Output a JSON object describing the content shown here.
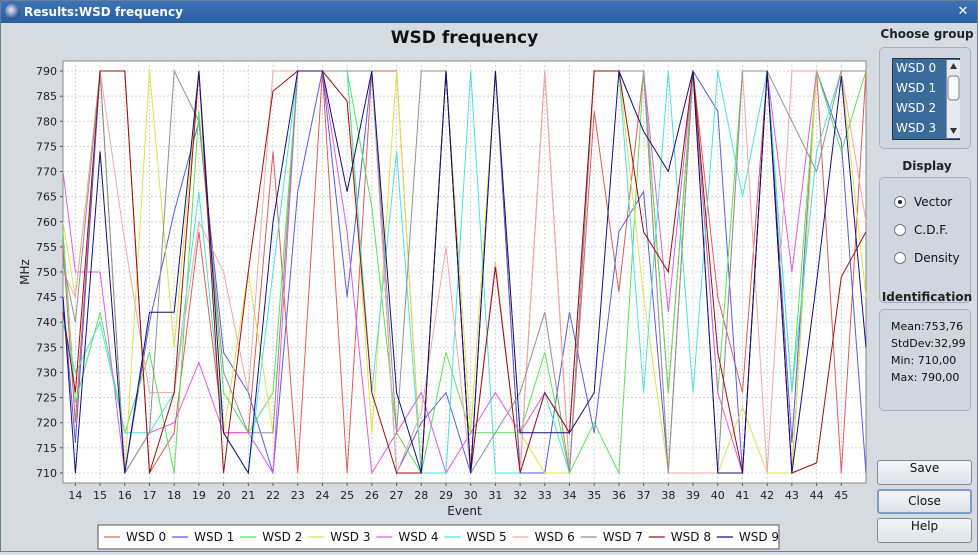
{
  "window": {
    "title": "Results:WSD frequency",
    "close_glyph": "✕"
  },
  "side": {
    "choose_group_title": "Choose group",
    "groups": [
      "WSD 0",
      "WSD 1",
      "WSD 2",
      "WSD 3"
    ],
    "display_title": "Display",
    "display_options": [
      "Vector",
      "C.D.F.",
      "Density"
    ],
    "display_selected": "Vector",
    "identification_title": "Identification",
    "stats": [
      "Mean:753,76",
      "StdDev:32,99",
      "Min: 710,00",
      "Max: 790,00"
    ],
    "buttons": {
      "save": "Save",
      "close": "Close",
      "help": "Help"
    }
  },
  "chart_data": {
    "type": "line",
    "title": "WSD frequency",
    "xlabel": "Event",
    "ylabel": "MHz",
    "xlim": [
      13.5,
      46
    ],
    "ylim": [
      708,
      792
    ],
    "grid": true,
    "legend_position": "bottom",
    "x_ticks": [
      14,
      15,
      16,
      17,
      18,
      19,
      20,
      21,
      22,
      23,
      24,
      25,
      26,
      27,
      28,
      29,
      30,
      31,
      32,
      33,
      34,
      35,
      36,
      37,
      38,
      39,
      40,
      41,
      42,
      43,
      44,
      45
    ],
    "y_ticks": [
      710,
      715,
      720,
      725,
      730,
      735,
      740,
      745,
      750,
      755,
      760,
      765,
      770,
      775,
      780,
      785,
      790
    ],
    "x": [
      13.5,
      14,
      15,
      16,
      17,
      18,
      19,
      20,
      21,
      22,
      23,
      24,
      25,
      26,
      27,
      28,
      29,
      30,
      31,
      32,
      33,
      34,
      35,
      36,
      37,
      38,
      39,
      40,
      41,
      42,
      43,
      44,
      45,
      46
    ],
    "series": [
      {
        "name": "WSD 0",
        "color": "#e05a5a",
        "values": [
          755,
          720,
          790,
          790,
          710,
          718,
          758,
          718,
          718,
          774,
          710,
          790,
          710,
          790,
          790,
          710,
          790,
          710,
          790,
          710,
          790,
          710,
          782,
          746,
          790,
          726,
          790,
          745,
          726,
          790,
          710,
          790,
          710,
          790
        ]
      },
      {
        "name": "WSD 1",
        "color": "#5a5ae0",
        "values": [
          745,
          716,
          790,
          710,
          740,
          762,
          780,
          734,
          726,
          710,
          766,
          790,
          745,
          790,
          710,
          720,
          726,
          710,
          790,
          710,
          710,
          742,
          718,
          758,
          766,
          710,
          790,
          782,
          710,
          790,
          716,
          790,
          776,
          710
        ]
      },
      {
        "name": "WSD 2",
        "color": "#5ae05a",
        "values": [
          758,
          724,
          742,
          718,
          734,
          710,
          782,
          726,
          718,
          726,
          790,
          790,
          790,
          763,
          718,
          710,
          734,
          718,
          718,
          718,
          734,
          710,
          720,
          710,
          790,
          726,
          790,
          726,
          790,
          790,
          726,
          790,
          774,
          790
        ]
      },
      {
        "name": "WSD 3",
        "color": "#e0e04a",
        "values": [
          760,
          745,
          790,
          710,
          790,
          735,
          790,
          718,
          750,
          718,
          790,
          790,
          790,
          718,
          790,
          710,
          790,
          718,
          790,
          718,
          710,
          710,
          790,
          790,
          745,
          710,
          790,
          710,
          723,
          710,
          710,
          790,
          790,
          745
        ]
      },
      {
        "name": "WSD 4",
        "color": "#e05ae0",
        "values": [
          770,
          750,
          750,
          710,
          718,
          720,
          732,
          718,
          718,
          710,
          790,
          790,
          758,
          710,
          718,
          726,
          710,
          718,
          726,
          718,
          726,
          718,
          790,
          790,
          790,
          742,
          790,
          726,
          710,
          790,
          750,
          790,
          790,
          790
        ]
      },
      {
        "name": "WSD 5",
        "color": "#4ae0e0",
        "values": [
          740,
          730,
          740,
          718,
          718,
          726,
          766,
          718,
          710,
          750,
          790,
          790,
          790,
          726,
          774,
          710,
          710,
          790,
          710,
          710,
          726,
          710,
          790,
          790,
          726,
          790,
          726,
          790,
          765,
          790,
          726,
          774,
          790,
          790
        ]
      },
      {
        "name": "WSD 6",
        "color": "#f0a8a8",
        "values": [
          750,
          745,
          790,
          756,
          726,
          726,
          760,
          750,
          726,
          790,
          790,
          790,
          790,
          790,
          710,
          722,
          755,
          710,
          752,
          710,
          790,
          710,
          790,
          790,
          790,
          710,
          710,
          710,
          790,
          710,
          790,
          790,
          790,
          760
        ]
      },
      {
        "name": "WSD 7",
        "color": "#909090",
        "values": [
          752,
          740,
          790,
          710,
          718,
          790,
          780,
          730,
          718,
          718,
          790,
          790,
          790,
          790,
          718,
          790,
          790,
          710,
          718,
          726,
          742,
          710,
          790,
          790,
          790,
          710,
          790,
          710,
          790,
          790,
          780,
          770,
          790,
          790
        ]
      },
      {
        "name": "WSD 8",
        "color": "#9a1010",
        "values": [
          742,
          726,
          790,
          790,
          710,
          726,
          790,
          710,
          750,
          786,
          790,
          790,
          784,
          726,
          710,
          710,
          790,
          710,
          751,
          710,
          726,
          718,
          790,
          790,
          758,
          750,
          790,
          734,
          710,
          790,
          710,
          712,
          749,
          758
        ]
      },
      {
        "name": "WSD 9",
        "color": "#10107a",
        "values": [
          745,
          710,
          774,
          710,
          742,
          742,
          790,
          718,
          710,
          760,
          790,
          790,
          766,
          790,
          726,
          710,
          790,
          710,
          790,
          718,
          718,
          718,
          726,
          790,
          778,
          770,
          790,
          710,
          710,
          790,
          710,
          748,
          789,
          735
        ]
      }
    ]
  }
}
